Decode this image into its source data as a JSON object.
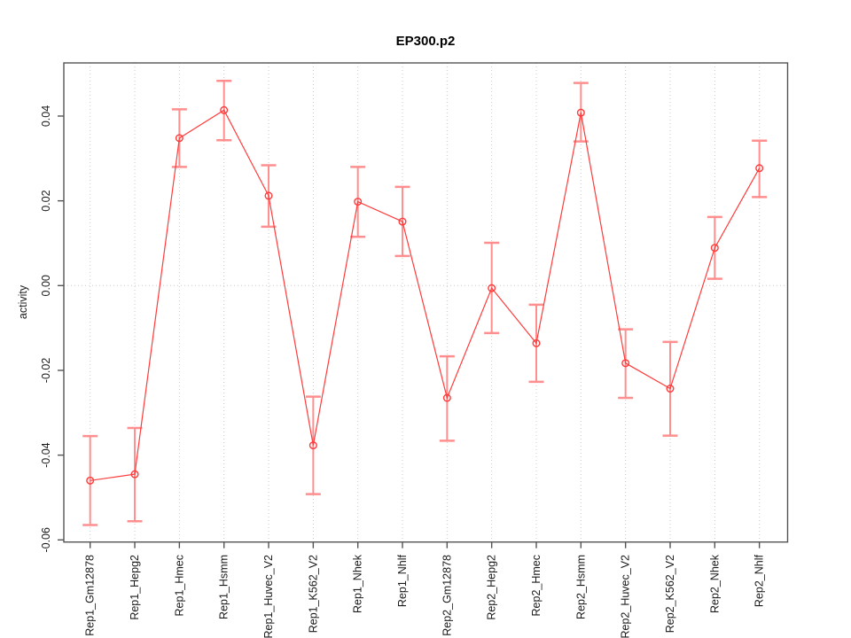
{
  "chart_data": {
    "type": "line",
    "title": "EP300.p2",
    "xlabel": "",
    "ylabel": "activity",
    "ylim": [
      -0.0605,
      0.0525
    ],
    "yticks": [
      0.04,
      0.02,
      0.0,
      -0.02,
      -0.04,
      -0.06
    ],
    "grid": "vertical dotted gridline at every category; dotted horizontal line at y=0",
    "legend_position": "none",
    "marker": "open-circle",
    "error_bars": true,
    "categories": [
      "Rep1_Gm12878",
      "Rep1_Hepg2",
      "Rep1_Hmec",
      "Rep1_Hsmm",
      "Rep1_Huvec_V2",
      "Rep1_K562_V2",
      "Rep1_Nhek",
      "Rep1_Nhlf",
      "Rep2_Gm12878",
      "Rep2_Hepg2",
      "Rep2_Hmec",
      "Rep2_Hsmm",
      "Rep2_Huvec_V2",
      "Rep2_K562_V2",
      "Rep2_Nhek",
      "Rep2_Nhlf"
    ],
    "series": [
      {
        "name": "activity",
        "values": [
          -0.046,
          -0.0445,
          0.0348,
          0.0414,
          0.0212,
          -0.0377,
          0.0198,
          0.0151,
          -0.0265,
          -0.0006,
          -0.0136,
          0.0408,
          -0.0183,
          -0.0243,
          0.0089,
          0.0277
        ],
        "error_high": [
          -0.0355,
          -0.0336,
          0.0416,
          0.0483,
          0.0284,
          -0.0262,
          0.028,
          0.0233,
          -0.0167,
          0.0101,
          -0.0045,
          0.0478,
          -0.0103,
          -0.0133,
          0.0162,
          0.0342
        ],
        "error_low": [
          -0.0565,
          -0.0556,
          0.028,
          0.0343,
          0.0139,
          -0.0492,
          0.0115,
          0.007,
          -0.0366,
          -0.0112,
          -0.0227,
          0.034,
          -0.0265,
          -0.0354,
          0.0016,
          0.0209
        ]
      }
    ],
    "colors": {
      "line": "#ff3b3b",
      "marker": "#ff3b3b",
      "error_bar": "#ff8f8f",
      "axis_box": "#545454",
      "gridline": "#c9c9c9",
      "tick_text": "#1a1a1a",
      "title_text": "#000000"
    }
  }
}
